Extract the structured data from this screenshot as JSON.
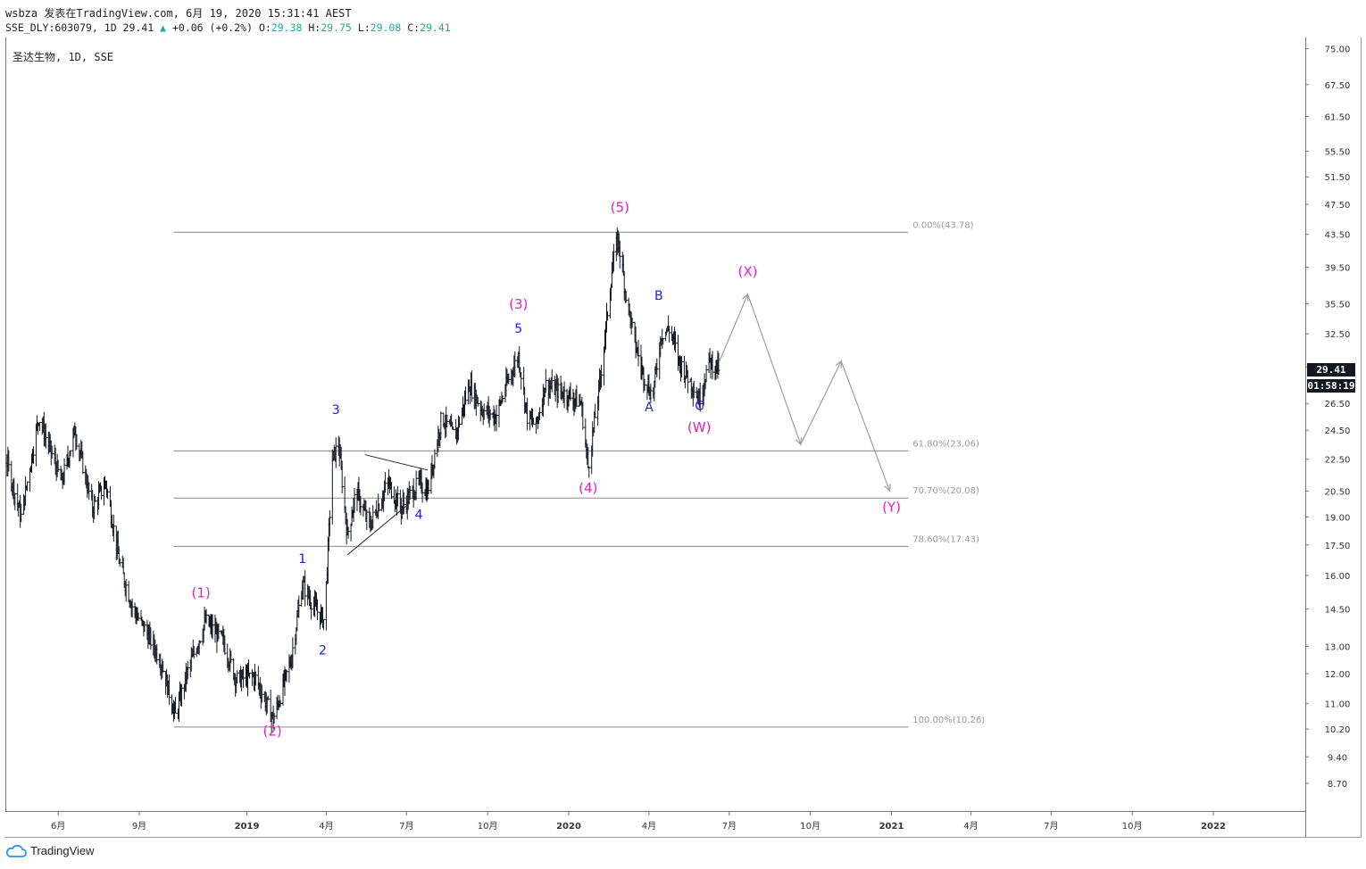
{
  "header": {
    "line1": "wsbza 发表在TradingView.com, 6月 19, 2020 15:31:41 AEST",
    "symbol_line": "SSE_DLY:603079, 1D 29.41",
    "change": "+0.06 (+0.2%)",
    "o_label": "O:",
    "o_value": "29.38",
    "h_label": "H:",
    "h_value": "29.75",
    "l_label": "L:",
    "l_value": "29.08",
    "c_label": "C:",
    "c_value": "29.41"
  },
  "chart_title": "圣达生物, 1D, SSE",
  "last_price": "29.41",
  "countdown": "01:58:19",
  "brand": "TradingView",
  "colors": {
    "bars": "#131722",
    "wave_major": "#e91ec2",
    "wave_minor": "#1a22dd",
    "fib": "#888888",
    "projection": "#9e9e9e",
    "up": "#26a69a"
  },
  "chart_data": {
    "type": "ohlc",
    "y_scale": "log",
    "ylim": [
      8.0,
      77.5
    ],
    "price_ticks": [
      "75.00",
      "67.50",
      "61.50",
      "55.50",
      "51.50",
      "47.50",
      "43.50",
      "39.50",
      "35.50",
      "32.50",
      "29.50",
      "26.50",
      "24.50",
      "22.50",
      "20.50",
      "19.00",
      "17.50",
      "16.00",
      "14.50",
      "13.00",
      "12.00",
      "11.00",
      "10.20",
      "9.40",
      "8.70"
    ],
    "time_ticks": [
      {
        "label": "6月",
        "date": "2018-06-01",
        "bold": false
      },
      {
        "label": "9月",
        "date": "2018-09-01",
        "bold": false
      },
      {
        "label": "2019",
        "date": "2019-01-01",
        "bold": true
      },
      {
        "label": "4月",
        "date": "2019-04-01",
        "bold": false
      },
      {
        "label": "7月",
        "date": "2019-07-01",
        "bold": false
      },
      {
        "label": "10月",
        "date": "2019-10-01",
        "bold": false
      },
      {
        "label": "2020",
        "date": "2020-01-01",
        "bold": true
      },
      {
        "label": "4月",
        "date": "2020-04-01",
        "bold": false
      },
      {
        "label": "7月",
        "date": "2020-07-01",
        "bold": false
      },
      {
        "label": "10月",
        "date": "2020-10-01",
        "bold": false
      },
      {
        "label": "2021",
        "date": "2021-01-01",
        "bold": true
      },
      {
        "label": "4月",
        "date": "2021-04-01",
        "bold": false
      },
      {
        "label": "7月",
        "date": "2021-07-01",
        "bold": false
      },
      {
        "label": "10月",
        "date": "2021-10-01",
        "bold": false
      },
      {
        "label": "2022",
        "date": "2022-01-01",
        "bold": true
      }
    ],
    "price_path": [
      {
        "date": "2018-03-01",
        "price": 21.5
      },
      {
        "date": "2018-04-01",
        "price": 23.0
      },
      {
        "date": "2018-04-20",
        "price": 19.0
      },
      {
        "date": "2018-05-10",
        "price": 25.5
      },
      {
        "date": "2018-06-05",
        "price": 21.0
      },
      {
        "date": "2018-06-20",
        "price": 24.5
      },
      {
        "date": "2018-07-10",
        "price": 19.5
      },
      {
        "date": "2018-07-25",
        "price": 21.0
      },
      {
        "date": "2018-08-10",
        "price": 16.5
      },
      {
        "date": "2018-08-25",
        "price": 14.5
      },
      {
        "date": "2018-09-10",
        "price": 13.5
      },
      {
        "date": "2018-09-25",
        "price": 12.5
      },
      {
        "date": "2018-10-12",
        "price": 10.6
      },
      {
        "date": "2018-10-25",
        "price": 12.0
      },
      {
        "date": "2018-11-15",
        "price": 14.0
      },
      {
        "date": "2018-12-05",
        "price": 13.2
      },
      {
        "date": "2018-12-20",
        "price": 11.8
      },
      {
        "date": "2019-01-10",
        "price": 11.9
      },
      {
        "date": "2019-01-31",
        "price": 10.5
      },
      {
        "date": "2019-02-20",
        "price": 12.5
      },
      {
        "date": "2019-03-05",
        "price": 15.6
      },
      {
        "date": "2019-03-20",
        "price": 14.5
      },
      {
        "date": "2019-03-30",
        "price": 14.0
      },
      {
        "date": "2019-04-08",
        "price": 22.5
      },
      {
        "date": "2019-04-15",
        "price": 23.5
      },
      {
        "date": "2019-04-25",
        "price": 18.0
      },
      {
        "date": "2019-05-05",
        "price": 20.5
      },
      {
        "date": "2019-05-20",
        "price": 18.5
      },
      {
        "date": "2019-06-10",
        "price": 21.0
      },
      {
        "date": "2019-06-25",
        "price": 19.5
      },
      {
        "date": "2019-07-15",
        "price": 21.0
      },
      {
        "date": "2019-07-25",
        "price": 20.5
      },
      {
        "date": "2019-08-10",
        "price": 25.5
      },
      {
        "date": "2019-08-25",
        "price": 24.0
      },
      {
        "date": "2019-09-10",
        "price": 28.0
      },
      {
        "date": "2019-09-25",
        "price": 26.0
      },
      {
        "date": "2019-10-10",
        "price": 25.5
      },
      {
        "date": "2019-10-25",
        "price": 28.5
      },
      {
        "date": "2019-11-05",
        "price": 30.5
      },
      {
        "date": "2019-11-15",
        "price": 25.5
      },
      {
        "date": "2019-11-25",
        "price": 24.8
      },
      {
        "date": "2019-12-05",
        "price": 28.0
      },
      {
        "date": "2019-12-20",
        "price": 27.5
      },
      {
        "date": "2020-01-05",
        "price": 27.0
      },
      {
        "date": "2020-01-15",
        "price": 26.5
      },
      {
        "date": "2020-01-23",
        "price": 22.0
      },
      {
        "date": "2020-02-05",
        "price": 28.0
      },
      {
        "date": "2020-02-20",
        "price": 40.0
      },
      {
        "date": "2020-02-26",
        "price": 43.0
      },
      {
        "date": "2020-03-05",
        "price": 37.0
      },
      {
        "date": "2020-03-15",
        "price": 32.0
      },
      {
        "date": "2020-03-25",
        "price": 29.0
      },
      {
        "date": "2020-04-05",
        "price": 27.0
      },
      {
        "date": "2020-04-15",
        "price": 32.5
      },
      {
        "date": "2020-04-25",
        "price": 33.0
      },
      {
        "date": "2020-05-05",
        "price": 30.0
      },
      {
        "date": "2020-05-20",
        "price": 28.0
      },
      {
        "date": "2020-05-28",
        "price": 26.8
      },
      {
        "date": "2020-06-08",
        "price": 30.0
      },
      {
        "date": "2020-06-19",
        "price": 29.41
      }
    ],
    "fib_levels": [
      {
        "label": "0.00%(43.78)",
        "price": 43.78
      },
      {
        "label": "61.80%(23.06)",
        "price": 23.06
      },
      {
        "label": "70.70%(20.08)",
        "price": 20.08
      },
      {
        "label": "78.60%(17.43)",
        "price": 17.43
      },
      {
        "label": "100.00%(10.26)",
        "price": 10.26
      }
    ],
    "fib_range": {
      "start": "2018-10-10",
      "end": "2021-01-20"
    },
    "triangle": {
      "upper": [
        {
          "date": "2019-05-15",
          "price": 22.8
        },
        {
          "date": "2019-07-25",
          "price": 21.8
        }
      ],
      "lower": [
        {
          "date": "2019-04-25",
          "price": 17.0
        },
        {
          "date": "2019-07-05",
          "price": 19.8
        }
      ]
    },
    "wave_labels": [
      {
        "text": "(1)",
        "date": "2018-11-10",
        "price": 15.0,
        "kind": "major"
      },
      {
        "text": "(2)",
        "date": "2019-01-30",
        "price": 10.0,
        "kind": "major"
      },
      {
        "text": "(3)",
        "date": "2019-11-05",
        "price": 35.0,
        "kind": "major"
      },
      {
        "text": "(4)",
        "date": "2020-01-23",
        "price": 20.4,
        "kind": "major"
      },
      {
        "text": "(5)",
        "date": "2020-02-28",
        "price": 46.5,
        "kind": "major"
      },
      {
        "text": "(W)",
        "date": "2020-05-28",
        "price": 24.4,
        "kind": "major"
      },
      {
        "text": "(X)",
        "date": "2020-07-22",
        "price": 38.5,
        "kind": "major"
      },
      {
        "text": "(Y)",
        "date": "2021-01-01",
        "price": 19.3,
        "kind": "major"
      },
      {
        "text": "1",
        "date": "2019-03-05",
        "price": 16.6,
        "kind": "minor"
      },
      {
        "text": "2",
        "date": "2019-03-28",
        "price": 12.7,
        "kind": "minor"
      },
      {
        "text": "3",
        "date": "2019-04-12",
        "price": 25.7,
        "kind": "minor"
      },
      {
        "text": "4",
        "date": "2019-07-15",
        "price": 18.9,
        "kind": "minor"
      },
      {
        "text": "5",
        "date": "2019-11-05",
        "price": 32.6,
        "kind": "minor"
      },
      {
        "text": "A",
        "date": "2020-04-01",
        "price": 25.9,
        "kind": "minor"
      },
      {
        "text": "B",
        "date": "2020-04-12",
        "price": 35.9,
        "kind": "minor"
      },
      {
        "text": "C",
        "date": "2020-05-28",
        "price": 26.0,
        "kind": "minor"
      }
    ],
    "projection": [
      {
        "date": "2020-06-20",
        "price": 30.0
      },
      {
        "date": "2020-07-22",
        "price": 36.5
      },
      {
        "date": "2020-09-20",
        "price": 23.5
      },
      {
        "date": "2020-11-05",
        "price": 30.0
      },
      {
        "date": "2020-12-30",
        "price": 20.5
      }
    ]
  }
}
